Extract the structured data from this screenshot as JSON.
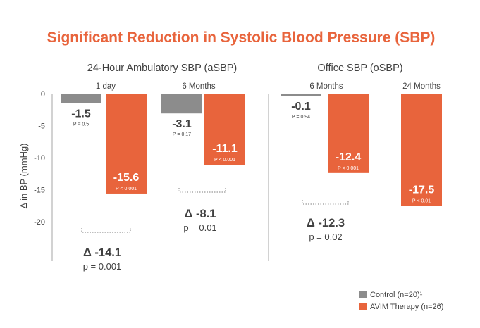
{
  "chart_data": {
    "type": "bar",
    "title": "Significant Reduction in Systolic Blood Pressure (SBP)",
    "ylabel": "Δ in BP (mmHg)",
    "ylim": [
      -25,
      0
    ],
    "yticks": [
      0,
      -5,
      -10,
      -15,
      -20
    ],
    "grid": false,
    "legend_position": "bottom-right",
    "colors": {
      "control": "#8c8c8c",
      "avim": "#e8643c",
      "title": "#e8643c",
      "text": "#404040",
      "axis": "#a6a6a6"
    },
    "series": [
      {
        "name": "Control (n=20)¹"
      },
      {
        "name": "AVIM Therapy (n=26)"
      }
    ],
    "groups": [
      {
        "title": "24-Hour Ambulatory SBP (aSBP)",
        "timepoints": [
          {
            "label": "1 day",
            "control": {
              "value": -1.5,
              "value_label": "-1.5",
              "p_label": "P = 0.5"
            },
            "avim": {
              "value": -15.6,
              "value_label": "-15.6",
              "p_label": "P < 0.001"
            },
            "delta": {
              "label": "Δ -14.1",
              "p_label": "p = 0.001"
            }
          },
          {
            "label": "6 Months",
            "control": {
              "value": -3.1,
              "value_label": "-3.1",
              "p_label": "P = 0.17"
            },
            "avim": {
              "value": -11.1,
              "value_label": "-11.1",
              "p_label": "P < 0.001"
            },
            "delta": {
              "label": "Δ -8.1",
              "p_label": "p = 0.01"
            }
          }
        ]
      },
      {
        "title": "Office SBP (oSBP)",
        "timepoints": [
          {
            "label": "6 Months",
            "control": {
              "value": -0.1,
              "value_label": "-0.1",
              "p_label": "P = 0.94"
            },
            "avim": {
              "value": -12.4,
              "value_label": "-12.4",
              "p_label": "P < 0.001"
            },
            "delta": {
              "label": "Δ -12.3",
              "p_label": "p = 0.02"
            }
          },
          {
            "label": "24 Months",
            "control": null,
            "avim": {
              "value": -17.5,
              "value_label": "-17.5",
              "p_label": "P < 0.01"
            },
            "delta": null
          }
        ]
      }
    ]
  }
}
